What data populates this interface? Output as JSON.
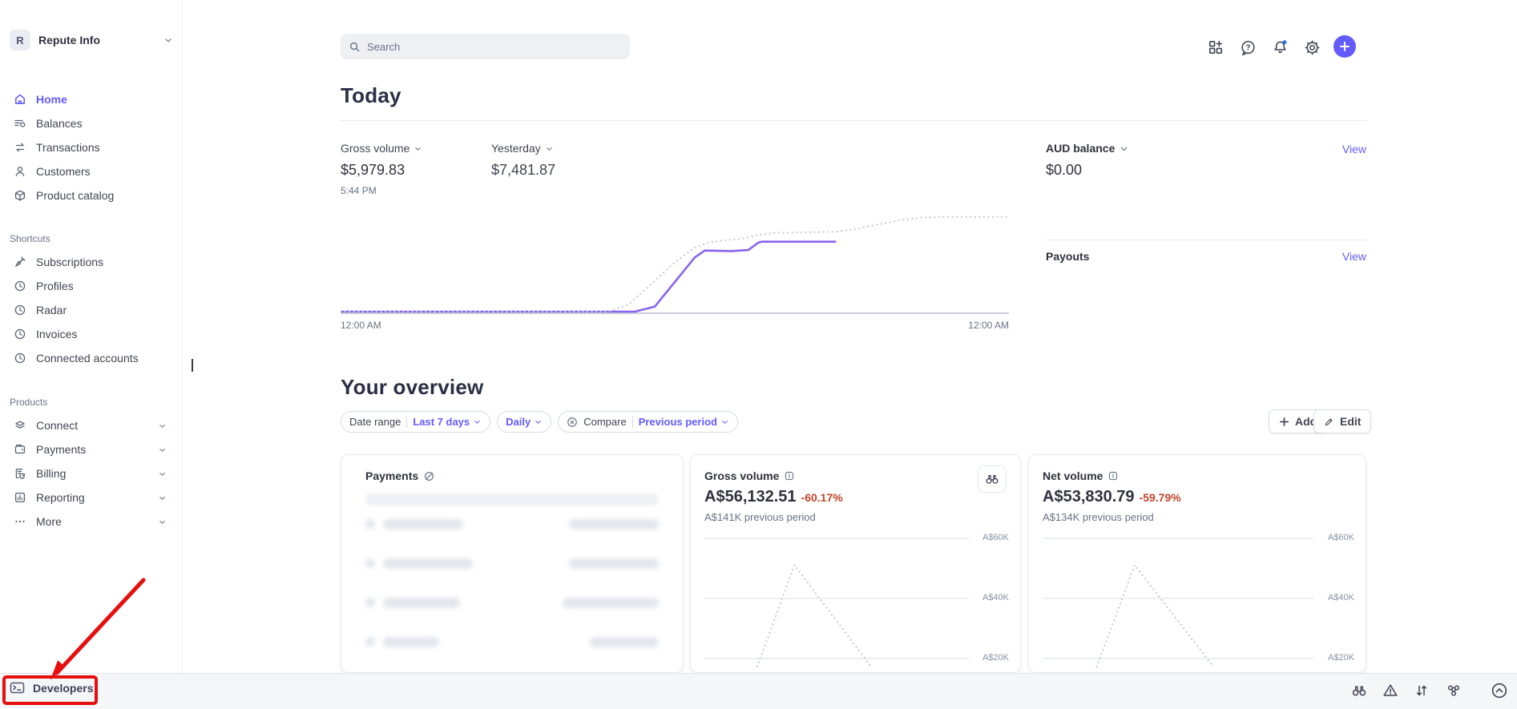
{
  "account": {
    "initial": "R",
    "name": "Repute Info"
  },
  "search": {
    "placeholder": "Search"
  },
  "sidebar": {
    "nav": [
      {
        "label": "Home",
        "icon": "home-icon",
        "active": true
      },
      {
        "label": "Balances",
        "icon": "balances-icon"
      },
      {
        "label": "Transactions",
        "icon": "transactions-icon"
      },
      {
        "label": "Customers",
        "icon": "customers-icon"
      },
      {
        "label": "Product catalog",
        "icon": "product-catalog-icon"
      }
    ],
    "shortcuts_label": "Shortcuts",
    "shortcuts": [
      {
        "label": "Subscriptions",
        "icon": "pin-icon"
      },
      {
        "label": "Profiles",
        "icon": "clock-icon"
      },
      {
        "label": "Radar",
        "icon": "clock-icon"
      },
      {
        "label": "Invoices",
        "icon": "clock-icon"
      },
      {
        "label": "Connected accounts",
        "icon": "clock-icon"
      }
    ],
    "products_label": "Products",
    "products": [
      {
        "label": "Connect",
        "icon": "layers-icon"
      },
      {
        "label": "Payments",
        "icon": "wallet-icon"
      },
      {
        "label": "Billing",
        "icon": "billing-icon"
      },
      {
        "label": "Reporting",
        "icon": "reporting-icon"
      },
      {
        "label": "More",
        "icon": "more-icon"
      }
    ]
  },
  "today": {
    "title": "Today",
    "gross_label": "Gross volume",
    "gross_value": "$5,979.83",
    "gross_time": "5:44 PM",
    "yesterday_label": "Yesterday",
    "yesterday_value": "$7,481.87",
    "axis_start": "12:00 AM",
    "axis_end": "12:00 AM",
    "aud_label": "AUD balance",
    "aud_value": "$0.00",
    "aud_view": "View",
    "payouts_label": "Payouts",
    "payouts_view": "View"
  },
  "overview": {
    "title": "Your overview",
    "filters": {
      "date_range_label": "Date range",
      "date_range_value": "Last 7 days",
      "interval_value": "Daily",
      "compare_label": "Compare",
      "compare_value": "Previous period"
    },
    "add_label": "Add",
    "edit_label": "Edit"
  },
  "cards": {
    "payments": {
      "title": "Payments",
      "note": "table content is privacy-blurred in screenshot"
    },
    "gross": {
      "title": "Gross volume",
      "value": "A$56,132.51",
      "delta": "-60.17%",
      "previous": "A$141K previous period",
      "axis": [
        "A$60K",
        "A$40K",
        "A$20K"
      ]
    },
    "net": {
      "title": "Net volume",
      "value": "A$53,830.79",
      "delta": "-59.79%",
      "previous": "A$134K previous period",
      "axis": [
        "A$60K",
        "A$40K",
        "A$20K"
      ]
    }
  },
  "bottombar": {
    "developers": "Developers"
  },
  "colors": {
    "accent": "#635bff",
    "negative_delta": "#c0452b",
    "text": "#30313d",
    "muted": "#687385",
    "chart_solid": "#8a63f0",
    "chart_dotted": "#c4cbd4",
    "annotation_red": "#e60f0f",
    "notification_dot": "#2e6de5"
  },
  "chart_data": [
    {
      "id": "today-volume",
      "type": "line",
      "title": "Gross volume today vs yesterday (cumulative)",
      "x_ticks": [
        "12:00 AM",
        "12:00 AM"
      ],
      "baseline": true,
      "series": [
        {
          "name": "Today ($5,979.83 as of 5:44 PM)",
          "style": "solid",
          "color": "#8a63f0",
          "points": [
            [
              0,
              0
            ],
            [
              0.44,
              0
            ],
            [
              0.47,
              0.05
            ],
            [
              0.5,
              0.3
            ],
            [
              0.53,
              0.55
            ],
            [
              0.545,
              0.62
            ],
            [
              0.585,
              0.615
            ],
            [
              0.61,
              0.625
            ],
            [
              0.625,
              0.7
            ],
            [
              0.63,
              0.71
            ],
            [
              0.74,
              0.71
            ]
          ]
        },
        {
          "name": "Yesterday ($7,481.87)",
          "style": "dotted",
          "color": "#c4cbd4",
          "points": [
            [
              0,
              0
            ],
            [
              0.4,
              0
            ],
            [
              0.43,
              0.07
            ],
            [
              0.46,
              0.25
            ],
            [
              0.5,
              0.5
            ],
            [
              0.53,
              0.65
            ],
            [
              0.55,
              0.7
            ],
            [
              0.57,
              0.72
            ],
            [
              0.6,
              0.74
            ],
            [
              0.625,
              0.78
            ],
            [
              0.65,
              0.8
            ],
            [
              0.74,
              0.81
            ],
            [
              0.77,
              0.84
            ],
            [
              0.8,
              0.88
            ],
            [
              0.84,
              0.93
            ],
            [
              0.87,
              0.955
            ],
            [
              0.9,
              0.96
            ],
            [
              1,
              0.96
            ]
          ]
        }
      ]
    },
    {
      "id": "gross-mini",
      "type": "line",
      "title": "Gross volume, previous period",
      "ylim": [
        0,
        63500
      ],
      "grid_y": [
        0.063,
        0.491,
        0.92
      ],
      "grid_labels": [
        "A$60K",
        "A$40K",
        "A$20K"
      ],
      "series": [
        {
          "name": "Previous period (peak ~A$51K)",
          "style": "dotted",
          "color": "#c4cbd4",
          "points": [
            [
              0.2,
              0
            ],
            [
              0.34,
              0.755
            ],
            [
              0.63,
              0
            ]
          ]
        }
      ]
    },
    {
      "id": "net-mini",
      "type": "line",
      "title": "Net volume, previous period",
      "ylim": [
        0,
        63500
      ],
      "grid_y": [
        0.063,
        0.491,
        0.92
      ],
      "grid_labels": [
        "A$60K",
        "A$40K",
        "A$20K"
      ],
      "series": [
        {
          "name": "Previous period (peak ~A$51K)",
          "style": "dotted",
          "color": "#c4cbd4",
          "points": [
            [
              0.2,
              0
            ],
            [
              0.34,
              0.755
            ],
            [
              0.63,
              0
            ]
          ]
        }
      ]
    }
  ]
}
